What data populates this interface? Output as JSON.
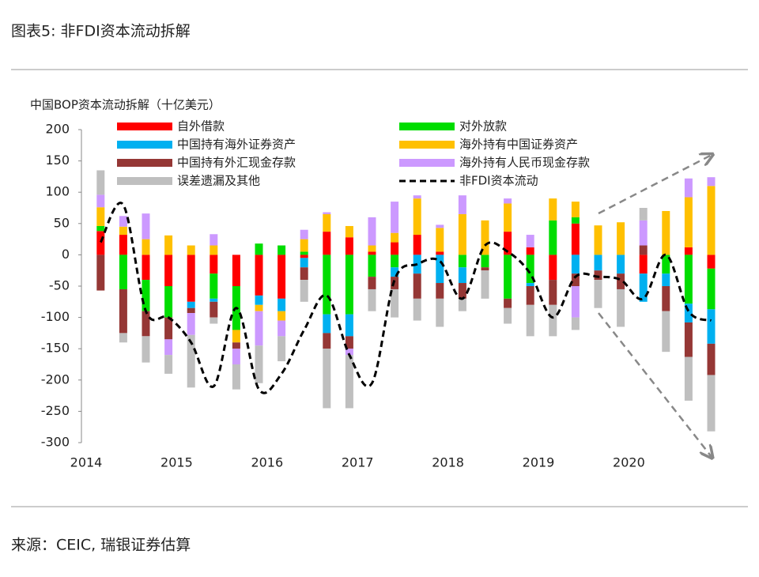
{
  "header": {
    "title": "图表5: 非FDI资本流动拆解"
  },
  "footer": {
    "source": "来源：CEIC, 瑞银证券估算"
  },
  "chart_data": {
    "type": "bar",
    "stacked": true,
    "title": "中国BOP资本流动拆解（十亿美元）",
    "categories": [
      "2014",
      null,
      null,
      null,
      "2015",
      null,
      null,
      null,
      "2016",
      null,
      null,
      null,
      "2017",
      null,
      null,
      null,
      "2018",
      null,
      null,
      null,
      "2019",
      null,
      null,
      null,
      "2020",
      null,
      null,
      null
    ],
    "ylim": [
      -300,
      200
    ],
    "yticks": [
      -300,
      -250,
      -200,
      -150,
      -100,
      -50,
      0,
      50,
      100,
      150,
      200
    ],
    "series": [
      {
        "name": "自外借款",
        "color": "#ff0000",
        "values": [
          38,
          32,
          -40,
          -50,
          -75,
          -30,
          -50,
          -65,
          -70,
          -5,
          37,
          28,
          5,
          20,
          32,
          5,
          0,
          0,
          37,
          12,
          -40,
          50,
          0,
          0,
          -30,
          0,
          12,
          -22
        ]
      },
      {
        "name": "对外放款",
        "color": "#00dd00",
        "values": [
          8,
          -55,
          -50,
          -50,
          0,
          -40,
          -70,
          18,
          15,
          5,
          -95,
          -95,
          -35,
          -20,
          0,
          0,
          -20,
          -20,
          -70,
          -45,
          55,
          10,
          0,
          0,
          0,
          -30,
          -78,
          -65
        ]
      },
      {
        "name": "中国持有海外证券资产",
        "color": "#00b0f0",
        "values": [
          0,
          0,
          0,
          0,
          -10,
          -5,
          0,
          -15,
          -20,
          -15,
          -30,
          -35,
          0,
          -15,
          -30,
          -45,
          -25,
          0,
          0,
          -5,
          0,
          -30,
          -25,
          -30,
          -45,
          -20,
          -30,
          -55
        ]
      },
      {
        "name": "海外持有中国证券资产",
        "color": "#ffc000",
        "values": [
          30,
          13,
          25,
          31,
          15,
          15,
          -20,
          -10,
          -15,
          20,
          28,
          18,
          10,
          15,
          58,
          38,
          65,
          55,
          45,
          0,
          35,
          25,
          47,
          52,
          0,
          70,
          80,
          110
        ]
      },
      {
        "name": "中国持有外汇现金存款",
        "color": "#953735",
        "values": [
          -57,
          -70,
          -40,
          -35,
          -8,
          -25,
          -10,
          0,
          0,
          -20,
          -25,
          -20,
          -20,
          -20,
          -40,
          -25,
          -25,
          -5,
          -15,
          -30,
          -40,
          -20,
          -15,
          -25,
          15,
          -40,
          -55,
          -50
        ]
      },
      {
        "name": "海外持有人民币现金存款",
        "color": "#cc99ff",
        "values": [
          20,
          17,
          41,
          -25,
          -35,
          18,
          -25,
          -55,
          -25,
          15,
          3,
          -10,
          45,
          50,
          5,
          5,
          30,
          0,
          8,
          20,
          0,
          -50,
          0,
          0,
          40,
          0,
          30,
          14
        ]
      },
      {
        "name": "误差遗漏及其他",
        "color": "#bfbfbf",
        "values": [
          39,
          -15,
          -42,
          -30,
          -84,
          -10,
          -40,
          -60,
          -40,
          -35,
          -95,
          -85,
          -35,
          -45,
          -35,
          -45,
          -20,
          -45,
          -25,
          -50,
          -50,
          -20,
          -45,
          -60,
          20,
          -65,
          -70,
          -90
        ]
      }
    ],
    "line": {
      "name": "非FDI资本流动",
      "color": "#000000",
      "dashed": true,
      "values": [
        20,
        80,
        -90,
        -100,
        -140,
        -210,
        -85,
        -215,
        -190,
        -120,
        -65,
        -160,
        -205,
        -40,
        -15,
        -10,
        -70,
        15,
        5,
        -30,
        -100,
        -35,
        -35,
        -40,
        -70,
        0,
        -90,
        -105
      ]
    }
  }
}
